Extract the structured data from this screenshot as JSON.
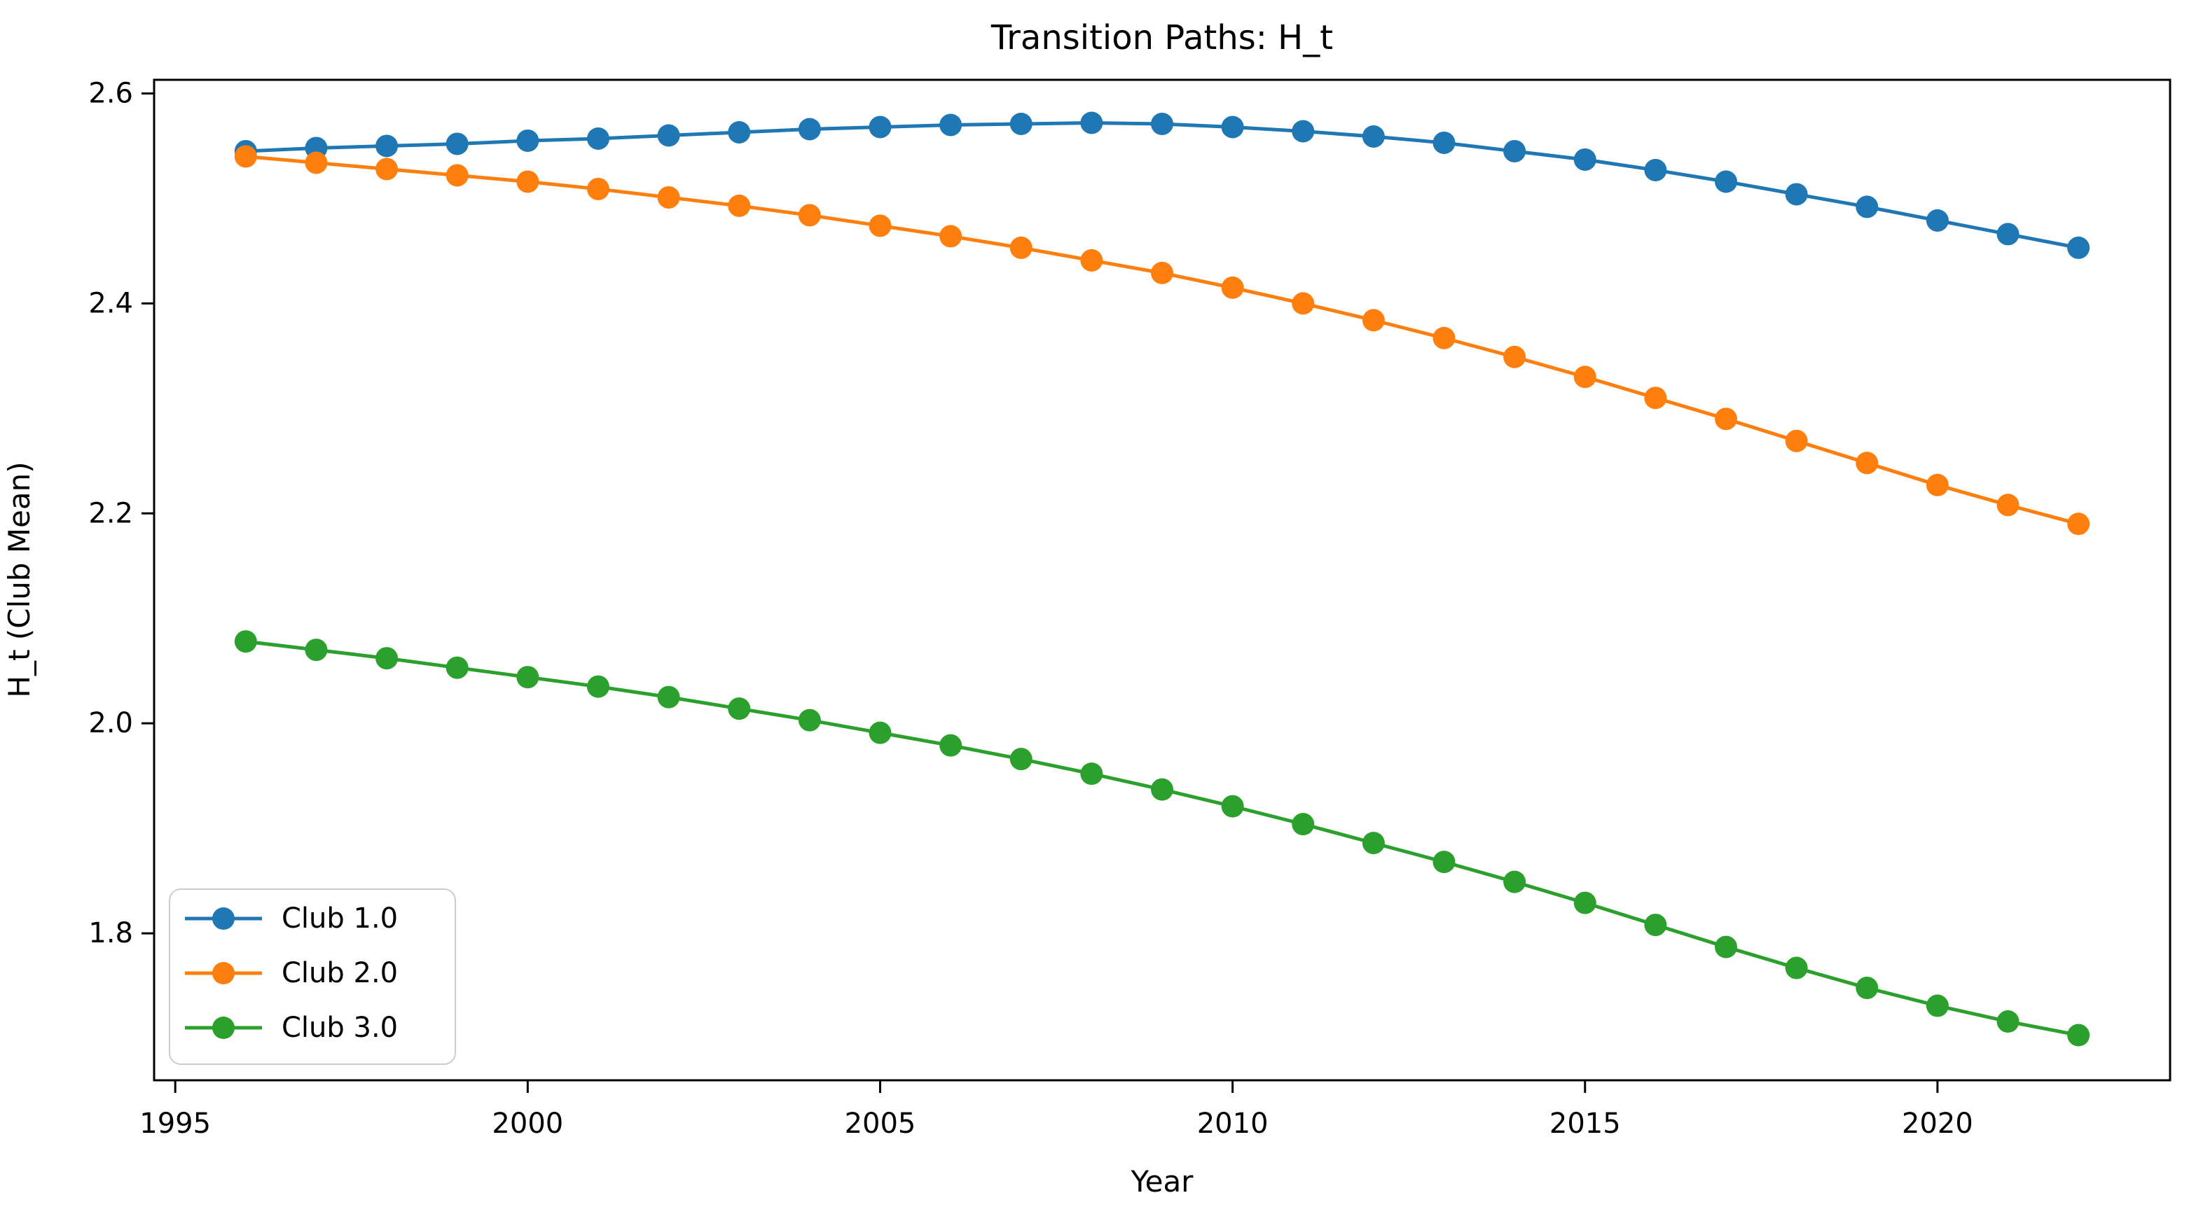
{
  "figure": {
    "background": "#ffffff",
    "text_color": "#000000"
  },
  "chart_data": {
    "type": "line",
    "title": "Transition Paths: H_t",
    "xlabel": "Year",
    "ylabel": "H_t (Club Mean)",
    "grid": false,
    "legend_position": "lower left",
    "xlim": [
      1994.7,
      2023.3
    ],
    "ylim": [
      1.66,
      2.613
    ],
    "x_ticks": [
      1995,
      2000,
      2005,
      2010,
      2015,
      2020
    ],
    "x_tick_labels": [
      "1995",
      "2000",
      "2005",
      "2010",
      "2015",
      "2020"
    ],
    "y_ticks": [
      1.8,
      2.0,
      2.2,
      2.4,
      2.6
    ],
    "y_tick_labels": [
      "1.8",
      "2.0",
      "2.2",
      "2.4",
      "2.6"
    ],
    "x": [
      1996,
      1997,
      1998,
      1999,
      2000,
      2001,
      2002,
      2003,
      2004,
      2005,
      2006,
      2007,
      2008,
      2009,
      2010,
      2011,
      2012,
      2013,
      2014,
      2015,
      2016,
      2017,
      2018,
      2019,
      2020,
      2021,
      2022
    ],
    "series": [
      {
        "name": "Club 1.0",
        "color": "#1f77b4",
        "marker": "circle",
        "values": [
          2.545,
          2.548,
          2.55,
          2.552,
          2.555,
          2.557,
          2.56,
          2.563,
          2.566,
          2.568,
          2.57,
          2.571,
          2.572,
          2.571,
          2.568,
          2.564,
          2.559,
          2.553,
          2.545,
          2.537,
          2.527,
          2.516,
          2.504,
          2.492,
          2.479,
          2.466,
          2.453
        ]
      },
      {
        "name": "Club 2.0",
        "color": "#ff7f0e",
        "marker": "circle",
        "values": [
          2.54,
          2.534,
          2.528,
          2.522,
          2.516,
          2.509,
          2.501,
          2.493,
          2.484,
          2.474,
          2.464,
          2.453,
          2.441,
          2.429,
          2.415,
          2.4,
          2.384,
          2.367,
          2.349,
          2.33,
          2.31,
          2.29,
          2.269,
          2.248,
          2.227,
          2.208,
          2.19
        ]
      },
      {
        "name": "Club 3.0",
        "color": "#2ca02c",
        "marker": "circle",
        "values": [
          2.078,
          2.07,
          2.062,
          2.053,
          2.044,
          2.035,
          2.025,
          2.014,
          2.003,
          1.991,
          1.979,
          1.966,
          1.952,
          1.937,
          1.921,
          1.904,
          1.886,
          1.868,
          1.849,
          1.829,
          1.808,
          1.787,
          1.767,
          1.748,
          1.731,
          1.716,
          1.703
        ]
      }
    ]
  }
}
